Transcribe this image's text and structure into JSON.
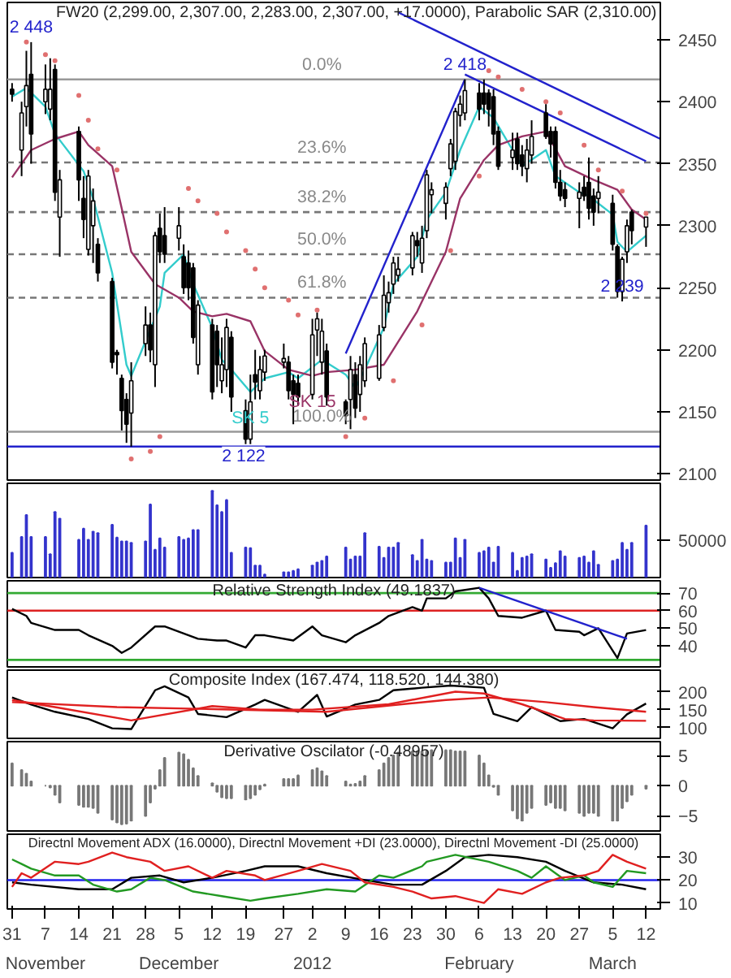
{
  "chart_data": [
    {
      "type": "candlestick",
      "title": "FW20 (2,299.00, 2,307.00, 2,283.00, 2,307.00, +17.0000), Parabolic SAR (2,310.00)",
      "tick_labels": "y",
      "xlim": [
        "2011-10-30",
        "2012-03-15"
      ],
      "ylim": [
        2095,
        2480
      ],
      "yticks": [
        2100,
        2150,
        2200,
        2250,
        2300,
        2350,
        2400,
        2450
      ],
      "x": [
        "2011-10-31",
        "2011-11-02",
        "2011-11-03",
        "2011-11-04",
        "2011-11-07",
        "2011-11-08",
        "2011-11-09",
        "2011-11-10",
        "2011-11-14",
        "2011-11-15",
        "2011-11-16",
        "2011-11-17",
        "2011-11-18",
        "2011-11-21",
        "2011-11-22",
        "2011-11-23",
        "2011-11-24",
        "2011-11-25",
        "2011-11-28",
        "2011-11-29",
        "2011-11-30",
        "2011-12-01",
        "2011-12-02",
        "2011-12-05",
        "2011-12-06",
        "2011-12-07",
        "2011-12-08",
        "2011-12-09",
        "2011-12-12",
        "2011-12-13",
        "2011-12-14",
        "2011-12-15",
        "2011-12-16",
        "2011-12-19",
        "2011-12-20",
        "2011-12-21",
        "2011-12-22",
        "2011-12-23",
        "2011-12-27",
        "2011-12-28",
        "2011-12-29",
        "2011-12-30",
        "2012-01-02",
        "2012-01-03",
        "2012-01-04",
        "2012-01-05",
        "2012-01-09",
        "2012-01-10",
        "2012-01-11",
        "2012-01-12",
        "2012-01-13",
        "2012-01-16",
        "2012-01-17",
        "2012-01-18",
        "2012-01-19",
        "2012-01-20",
        "2012-01-23",
        "2012-01-24",
        "2012-01-25",
        "2012-01-26",
        "2012-01-27",
        "2012-01-30",
        "2012-01-31",
        "2012-02-01",
        "2012-02-02",
        "2012-02-03",
        "2012-02-06",
        "2012-02-07",
        "2012-02-08",
        "2012-02-09",
        "2012-02-10",
        "2012-02-13",
        "2012-02-14",
        "2012-02-15",
        "2012-02-16",
        "2012-02-17",
        "2012-02-20",
        "2012-02-21",
        "2012-02-22",
        "2012-02-23",
        "2012-02-24",
        "2012-02-27",
        "2012-02-28",
        "2012-02-29",
        "2012-03-01",
        "2012-03-02",
        "2012-03-05",
        "2012-03-06",
        "2012-03-07",
        "2012-03-08",
        "2012-03-09",
        "2012-03-12"
      ],
      "ohlc": [
        [
          2410,
          2415,
          2400,
          2406
        ],
        [
          2361,
          2400,
          2340,
          2391
        ],
        [
          2396,
          2441,
          2380,
          2413
        ],
        [
          2422,
          2448,
          2350,
          2374
        ],
        [
          2400,
          2430,
          2390,
          2410
        ],
        [
          2394,
          2435,
          2385,
          2410
        ],
        [
          2426,
          2430,
          2320,
          2327
        ],
        [
          2307,
          2345,
          2275,
          2337
        ],
        [
          2376,
          2380,
          2320,
          2337
        ],
        [
          2322,
          2340,
          2290,
          2305
        ],
        [
          2281,
          2345,
          2276,
          2340
        ],
        [
          2300,
          2330,
          2270,
          2320
        ],
        [
          2285,
          2290,
          2255,
          2262
        ],
        [
          2255,
          2258,
          2185,
          2190
        ],
        [
          2198,
          2200,
          2180,
          2196
        ],
        [
          2177,
          2180,
          2135,
          2151
        ],
        [
          2160,
          2165,
          2125,
          2140
        ],
        [
          2149,
          2190,
          2122,
          2175
        ],
        [
          2205,
          2235,
          2195,
          2220
        ],
        [
          2220,
          2230,
          2190,
          2200
        ],
        [
          2188,
          2295,
          2170,
          2292
        ],
        [
          2298,
          2310,
          2270,
          2279
        ],
        [
          2292,
          2315,
          2270,
          2277
        ],
        [
          2290,
          2315,
          2280,
          2300
        ],
        [
          2275,
          2285,
          2245,
          2250
        ],
        [
          2270,
          2280,
          2240,
          2250
        ],
        [
          2266,
          2270,
          2205,
          2210
        ],
        [
          2188,
          2240,
          2180,
          2236
        ],
        [
          2220,
          2225,
          2160,
          2166
        ],
        [
          2215,
          2220,
          2170,
          2188
        ],
        [
          2175,
          2210,
          2165,
          2188
        ],
        [
          2184,
          2225,
          2170,
          2218
        ],
        [
          2210,
          2215,
          2150,
          2162
        ],
        [
          2151,
          2160,
          2124,
          2128
        ],
        [
          2128,
          2180,
          2124,
          2158
        ],
        [
          2180,
          2200,
          2160,
          2174
        ],
        [
          2167,
          2195,
          2160,
          2184
        ],
        [
          2182,
          2200,
          2175,
          2195
        ],
        [
          2190,
          2205,
          2185,
          2193
        ],
        [
          2190,
          2195,
          2160,
          2167
        ],
        [
          2175,
          2180,
          2140,
          2164
        ],
        [
          2173,
          2180,
          2155,
          2162
        ],
        [
          2164,
          2225,
          2160,
          2212
        ],
        [
          2216,
          2230,
          2195,
          2225
        ],
        [
          2190,
          2225,
          2180,
          2215
        ],
        [
          2199,
          2205,
          2155,
          2162
        ],
        [
          2158,
          2160,
          2140,
          2147
        ],
        [
          2160,
          2195,
          2136,
          2184
        ],
        [
          2180,
          2190,
          2145,
          2153
        ],
        [
          2164,
          2195,
          2150,
          2188
        ],
        [
          2175,
          2210,
          2170,
          2205
        ],
        [
          2177,
          2220,
          2175,
          2212
        ],
        [
          2218,
          2260,
          2215,
          2244
        ],
        [
          2238,
          2255,
          2230,
          2246
        ],
        [
          2253,
          2275,
          2245,
          2270
        ],
        [
          2260,
          2275,
          2255,
          2265
        ],
        [
          2266,
          2295,
          2260,
          2292
        ],
        [
          2288,
          2295,
          2275,
          2284
        ],
        [
          2270,
          2300,
          2262,
          2290
        ],
        [
          2296,
          2345,
          2290,
          2341
        ],
        [
          2325,
          2335,
          2310,
          2329
        ],
        [
          2318,
          2335,
          2305,
          2331
        ],
        [
          2346,
          2370,
          2340,
          2366
        ],
        [
          2352,
          2395,
          2345,
          2392
        ],
        [
          2389,
          2405,
          2380,
          2398
        ],
        [
          2391,
          2418,
          2385,
          2409
        ],
        [
          2407,
          2415,
          2385,
          2394
        ],
        [
          2407,
          2418,
          2390,
          2398
        ],
        [
          2407,
          2410,
          2380,
          2394
        ],
        [
          2404,
          2410,
          2365,
          2374
        ],
        [
          2376,
          2380,
          2345,
          2348
        ],
        [
          2355,
          2375,
          2345,
          2361
        ],
        [
          2370,
          2375,
          2345,
          2350
        ],
        [
          2357,
          2365,
          2340,
          2348
        ],
        [
          2346,
          2370,
          2335,
          2361
        ],
        [
          2357,
          2385,
          2350,
          2372
        ],
        [
          2391,
          2398,
          2370,
          2372
        ],
        [
          2376,
          2380,
          2355,
          2366
        ],
        [
          2376,
          2380,
          2330,
          2335
        ],
        [
          2335,
          2345,
          2320,
          2324
        ],
        [
          2329,
          2335,
          2315,
          2322
        ],
        [
          2322,
          2335,
          2298,
          2327
        ],
        [
          2331,
          2340,
          2320,
          2324
        ],
        [
          2335,
          2355,
          2305,
          2314
        ],
        [
          2324,
          2330,
          2300,
          2311
        ],
        [
          2322,
          2340,
          2310,
          2327
        ],
        [
          2318,
          2325,
          2280,
          2285
        ],
        [
          2283,
          2285,
          2242,
          2247
        ],
        [
          2247,
          2275,
          2239,
          2273
        ],
        [
          2279,
          2305,
          2270,
          2300
        ],
        [
          2311,
          2313,
          2285,
          2296
        ],
        [
          2299,
          2307,
          2283,
          2307
        ]
      ],
      "series": [
        {
          "name": "SK 5",
          "type": "line",
          "color": "#33cccc",
          "x": [
            "2011-10-31",
            "2011-11-03",
            "2011-11-07",
            "2011-11-09",
            "2011-11-15",
            "2011-11-17",
            "2011-11-21",
            "2011-11-24",
            "2011-11-25",
            "2011-12-01",
            "2011-12-02",
            "2011-12-06",
            "2011-12-08",
            "2011-12-12",
            "2011-12-14",
            "2011-12-16",
            "2011-12-20",
            "2011-12-23",
            "2011-12-28",
            "2011-12-30",
            "2012-01-04",
            "2012-01-09",
            "2012-01-11",
            "2012-01-13",
            "2012-01-17",
            "2012-01-19",
            "2012-01-24",
            "2012-01-26",
            "2012-01-30",
            "2012-02-02",
            "2012-02-06",
            "2012-02-09",
            "2012-02-13",
            "2012-02-15",
            "2012-02-20",
            "2012-02-22",
            "2012-02-27",
            "2012-02-29",
            "2012-03-05",
            "2012-03-06",
            "2012-03-08",
            "2012-03-12"
          ],
          "values": [
            2404,
            2411,
            2396,
            2374,
            2344,
            2322,
            2262,
            2188,
            2179,
            2235,
            2262,
            2277,
            2253,
            2218,
            2192,
            2184,
            2166,
            2177,
            2182,
            2177,
            2192,
            2180,
            2169,
            2184,
            2218,
            2253,
            2275,
            2305,
            2327,
            2361,
            2396,
            2387,
            2361,
            2348,
            2361,
            2340,
            2327,
            2324,
            2309,
            2287,
            2279,
            2292
          ]
        },
        {
          "name": "SK 15",
          "type": "line",
          "color": "#993366",
          "x": [
            "2011-10-31",
            "2011-11-04",
            "2011-11-09",
            "2011-11-14",
            "2011-11-16",
            "2011-11-21",
            "2011-11-23",
            "2011-11-25",
            "2011-11-30",
            "2011-12-05",
            "2011-12-08",
            "2011-12-12",
            "2011-12-15",
            "2011-12-20",
            "2011-12-23",
            "2011-12-28",
            "2012-01-02",
            "2012-01-05",
            "2012-01-11",
            "2012-01-17",
            "2012-01-24",
            "2012-01-30",
            "2012-02-02",
            "2012-02-07",
            "2012-02-10",
            "2012-02-15",
            "2012-02-20",
            "2012-02-24",
            "2012-03-01",
            "2012-03-06",
            "2012-03-09",
            "2012-03-12"
          ],
          "values": [
            2339,
            2361,
            2370,
            2376,
            2365,
            2348,
            2314,
            2279,
            2253,
            2242,
            2231,
            2227,
            2229,
            2223,
            2199,
            2184,
            2179,
            2182,
            2184,
            2188,
            2231,
            2279,
            2322,
            2353,
            2365,
            2372,
            2376,
            2348,
            2337,
            2329,
            2313,
            2305
          ]
        },
        {
          "type": "scatter",
          "marker": "circle",
          "color": "#e07070",
          "x": [
            "2011-11-03",
            "2011-11-07",
            "2011-11-09",
            "2011-11-14",
            "2011-11-16",
            "2011-11-18",
            "2011-11-22",
            "2011-11-25",
            "2011-11-29",
            "2011-12-01",
            "2011-12-07",
            "2011-12-09",
            "2011-12-13",
            "2011-12-15",
            "2011-12-19",
            "2011-12-21",
            "2011-12-23",
            "2011-12-28",
            "2011-12-30",
            "2012-01-03",
            "2012-01-09",
            "2012-01-13",
            "2012-01-19",
            "2012-01-25",
            "2012-01-31",
            "2012-02-06",
            "2012-02-08",
            "2012-02-10",
            "2012-02-15",
            "2012-02-20",
            "2012-02-23",
            "2012-02-28",
            "2012-03-02",
            "2012-03-07",
            "2012-03-12"
          ],
          "values": [
            2448,
            2438,
            2433,
            2405,
            2385,
            2362,
            2345,
            2112,
            2118,
            2130,
            2330,
            2320,
            2310,
            2295,
            2280,
            2265,
            2250,
            2240,
            2228,
            2232,
            2130,
            2145,
            2175,
            2220,
            2280,
            2340,
            2425,
            2420,
            2410,
            2400,
            2391,
            2365,
            2345,
            2328,
            2310
          ]
        },
        {
          "type": "line",
          "color": "#2222cc",
          "x": [
            "2012-01-09",
            "2012-02-03"
          ],
          "values": [
            2197,
            2418
          ]
        },
        {
          "type": "line",
          "color": "#2222cc",
          "x": [
            "2012-01-20",
            "2012-03-15"
          ],
          "values": [
            2472,
            2370
          ]
        },
        {
          "type": "line",
          "color": "#2222cc",
          "x": [
            "2012-02-03",
            "2012-03-12"
          ],
          "values": [
            2422,
            2352
          ]
        }
      ],
      "ref_lines": [
        {
          "axis": "y",
          "value": 2418,
          "color": "#999999",
          "line_style": "solid"
        },
        {
          "axis": "y",
          "value": 2351,
          "color": "#777777",
          "line_style": "dashed"
        },
        {
          "axis": "y",
          "value": 2311,
          "color": "#777777",
          "line_style": "dashed"
        },
        {
          "axis": "y",
          "value": 2277,
          "color": "#777777",
          "line_style": "dashed"
        },
        {
          "axis": "y",
          "value": 2242,
          "color": "#777777",
          "line_style": "dashed"
        },
        {
          "axis": "y",
          "value": 2134,
          "color": "#999999",
          "line_style": "solid"
        },
        {
          "axis": "y",
          "value": 2122,
          "label": "2 122",
          "color": "#2222cc",
          "line_style": "solid"
        }
      ],
      "annotations": [
        {
          "text": "2 448",
          "x": "2011-11-04",
          "y": 2448
        },
        {
          "text": "2 418",
          "x": "2012-02-03",
          "y": 2418
        },
        {
          "text": "2 239",
          "x": "2012-03-07",
          "y": 2239
        },
        {
          "text": "0.0%",
          "x": "2012-01-04",
          "y": 2418
        },
        {
          "text": "23.6%",
          "x": "2012-01-04",
          "y": 2351
        },
        {
          "text": "38.2%",
          "x": "2012-01-04",
          "y": 2311
        },
        {
          "text": "50.0%",
          "x": "2012-01-04",
          "y": 2277
        },
        {
          "text": "61.8%",
          "x": "2012-01-04",
          "y": 2242
        },
        {
          "text": "100.0%",
          "x": "2012-01-04",
          "y": 2134
        }
      ]
    },
    {
      "type": "bar",
      "tick_labels": "y",
      "color": "#3333cc",
      "xlim": [
        "2011-10-30",
        "2012-03-15"
      ],
      "ylim": [
        0,
        125000
      ],
      "yticks": [
        50000
      ],
      "x": [
        "2011-10-31",
        "2011-11-02",
        "2011-11-03",
        "2011-11-04",
        "2011-11-07",
        "2011-11-08",
        "2011-11-09",
        "2011-11-10",
        "2011-11-14",
        "2011-11-15",
        "2011-11-16",
        "2011-11-17",
        "2011-11-18",
        "2011-11-21",
        "2011-11-22",
        "2011-11-23",
        "2011-11-24",
        "2011-11-25",
        "2011-11-28",
        "2011-11-29",
        "2011-11-30",
        "2011-12-01",
        "2011-12-02",
        "2011-12-05",
        "2011-12-06",
        "2011-12-07",
        "2011-12-08",
        "2011-12-09",
        "2011-12-12",
        "2011-12-13",
        "2011-12-14",
        "2011-12-15",
        "2011-12-16",
        "2011-12-19",
        "2011-12-20",
        "2011-12-21",
        "2011-12-22",
        "2011-12-23",
        "2011-12-27",
        "2011-12-28",
        "2011-12-29",
        "2011-12-30",
        "2012-01-02",
        "2012-01-03",
        "2012-01-04",
        "2012-01-05",
        "2012-01-09",
        "2012-01-10",
        "2012-01-11",
        "2012-01-12",
        "2012-01-13",
        "2012-01-16",
        "2012-01-17",
        "2012-01-18",
        "2012-01-19",
        "2012-01-20",
        "2012-01-23",
        "2012-01-24",
        "2012-01-25",
        "2012-01-26",
        "2012-01-27",
        "2012-01-30",
        "2012-01-31",
        "2012-02-01",
        "2012-02-02",
        "2012-02-03",
        "2012-02-06",
        "2012-02-07",
        "2012-02-08",
        "2012-02-09",
        "2012-02-10",
        "2012-02-13",
        "2012-02-14",
        "2012-02-15",
        "2012-02-16",
        "2012-02-17",
        "2012-02-20",
        "2012-02-21",
        "2012-02-22",
        "2012-02-23",
        "2012-02-24",
        "2012-02-27",
        "2012-02-28",
        "2012-02-29",
        "2012-03-01",
        "2012-03-02",
        "2012-03-05",
        "2012-03-06",
        "2012-03-07",
        "2012-03-08",
        "2012-03-09",
        "2012-03-12"
      ],
      "values": [
        33000,
        54000,
        83000,
        54000,
        54000,
        31000,
        87000,
        78000,
        50000,
        65000,
        50000,
        61000,
        59000,
        70000,
        53000,
        48000,
        48000,
        46000,
        48000,
        97000,
        37000,
        52000,
        40000,
        54000,
        50000,
        52000,
        63000,
        63000,
        115000,
        96000,
        87000,
        103000,
        33000,
        40000,
        39000,
        16000,
        16000,
        4000,
        7000,
        7000,
        9000,
        11000,
        16000,
        20000,
        22000,
        28000,
        40000,
        24000,
        28000,
        28000,
        59000,
        41000,
        26000,
        40000,
        40000,
        46000,
        30000,
        22000,
        50000,
        24000,
        22000,
        20000,
        20000,
        52000,
        26000,
        50000,
        33000,
        35000,
        40000,
        20000,
        41000,
        33000,
        9000,
        26000,
        28000,
        31000,
        24000,
        13000,
        19000,
        35000,
        28000,
        26000,
        28000,
        20000,
        35000,
        17000,
        22000,
        24000,
        46000,
        37000,
        46000,
        69000
      ]
    },
    {
      "type": "line",
      "title": "Relative Strength Index (49.1837)",
      "tick_labels": "y",
      "xlim": [
        "2011-10-30",
        "2012-03-15"
      ],
      "ylim": [
        28,
        77
      ],
      "yticks": [
        40,
        50,
        60,
        70
      ],
      "series": [
        {
          "type": "line",
          "color": "#000000",
          "x": [
            "2011-10-31",
            "2011-11-03",
            "2011-11-04",
            "2011-11-09",
            "2011-11-14",
            "2011-11-16",
            "2011-11-21",
            "2011-11-23",
            "2011-11-25",
            "2011-11-30",
            "2011-12-02",
            "2011-12-06",
            "2011-12-09",
            "2011-12-13",
            "2011-12-15",
            "2011-12-19",
            "2011-12-21",
            "2011-12-23",
            "2011-12-29",
            "2012-01-02",
            "2012-01-04",
            "2012-01-09",
            "2012-01-11",
            "2012-01-16",
            "2012-01-18",
            "2012-01-23",
            "2012-01-25",
            "2012-01-26",
            "2012-01-30",
            "2012-02-01",
            "2012-02-06",
            "2012-02-08",
            "2012-02-10",
            "2012-02-15",
            "2012-02-20",
            "2012-02-22",
            "2012-02-27",
            "2012-02-28",
            "2012-03-02",
            "2012-03-06",
            "2012-03-08",
            "2012-03-12"
          ],
          "values": [
            61,
            57,
            53,
            49,
            49,
            46,
            40,
            36,
            39,
            51,
            51,
            47,
            44,
            43,
            43,
            39,
            46,
            46,
            43,
            51,
            46,
            42,
            46,
            53,
            57,
            62,
            60,
            67,
            67,
            71,
            73,
            67,
            57,
            56,
            60,
            49,
            48,
            46,
            50,
            33,
            47,
            49
          ]
        },
        {
          "type": "line",
          "color": "#2222cc",
          "x": [
            "2012-02-06",
            "2012-03-08"
          ],
          "values": [
            73,
            44
          ]
        }
      ],
      "ref_lines": [
        {
          "axis": "y",
          "value": 70,
          "color": "#33aa33"
        },
        {
          "axis": "y",
          "value": 60,
          "color": "#dd2222"
        },
        {
          "axis": "y",
          "value": 32,
          "color": "#33aa33"
        }
      ]
    },
    {
      "type": "line",
      "title": "Composite Index (167.474, 118.520, 144.380)",
      "tick_labels": "y",
      "xlim": [
        "2011-10-30",
        "2012-03-15"
      ],
      "ylim": [
        70,
        260
      ],
      "yticks": [
        100,
        150,
        200
      ],
      "series": [
        {
          "type": "line",
          "color": "#000000",
          "x": [
            "2011-10-31",
            "2011-11-04",
            "2011-11-09",
            "2011-11-16",
            "2011-11-21",
            "2011-11-25",
            "2011-11-30",
            "2011-12-02",
            "2011-12-07",
            "2011-12-09",
            "2011-12-15",
            "2011-12-21",
            "2011-12-23",
            "2011-12-30",
            "2012-01-03",
            "2012-01-05",
            "2012-01-11",
            "2012-01-16",
            "2012-01-19",
            "2012-01-25",
            "2012-01-31",
            "2012-02-07",
            "2012-02-09",
            "2012-02-14",
            "2012-02-17",
            "2012-02-23",
            "2012-02-28",
            "2012-03-05",
            "2012-03-08",
            "2012-03-12"
          ],
          "values": [
            184,
            164,
            144,
            124,
            98,
            96,
            204,
            215,
            184,
            138,
            129,
            164,
            177,
            144,
            191,
            131,
            164,
            177,
            204,
            211,
            217,
            211,
            138,
            118,
            157,
            118,
            124,
            98,
            137,
            167
          ]
        },
        {
          "type": "line",
          "color": "#e02020",
          "x": [
            "2011-10-31",
            "2011-11-09",
            "2011-11-25",
            "2011-12-12",
            "2011-12-22",
            "2012-01-02",
            "2012-01-18",
            "2012-02-01",
            "2012-02-07",
            "2012-02-15",
            "2012-02-24",
            "2012-03-01",
            "2012-03-12"
          ],
          "values": [
            177,
            157,
            120,
            160,
            150,
            150,
            165,
            200,
            195,
            165,
            124,
            120,
            119
          ]
        },
        {
          "type": "line",
          "color": "#e02020",
          "x": [
            "2011-10-31",
            "2011-11-22",
            "2011-12-14",
            "2012-01-05",
            "2012-01-30",
            "2012-02-08",
            "2012-02-20",
            "2012-03-01",
            "2012-03-12"
          ],
          "values": [
            171,
            157,
            151,
            144,
            177,
            184,
            171,
            157,
            144
          ]
        }
      ]
    },
    {
      "type": "bar",
      "title": "Derivative Oscilator (-0.48957)",
      "tick_labels": "y",
      "color": "#777777",
      "xlim": [
        "2011-10-30",
        "2012-03-15"
      ],
      "ylim": [
        -7.5,
        7.3
      ],
      "yticks": [
        -5,
        0,
        5
      ],
      "x": [
        "2011-10-31",
        "2011-11-02",
        "2011-11-03",
        "2011-11-04",
        "2011-11-07",
        "2011-11-08",
        "2011-11-09",
        "2011-11-10",
        "2011-11-14",
        "2011-11-15",
        "2011-11-16",
        "2011-11-17",
        "2011-11-18",
        "2011-11-21",
        "2011-11-22",
        "2011-11-23",
        "2011-11-24",
        "2011-11-25",
        "2011-11-28",
        "2011-11-29",
        "2011-11-30",
        "2011-12-01",
        "2011-12-02",
        "2011-12-05",
        "2011-12-06",
        "2011-12-07",
        "2011-12-08",
        "2011-12-09",
        "2011-12-12",
        "2011-12-13",
        "2011-12-14",
        "2011-12-15",
        "2011-12-16",
        "2011-12-19",
        "2011-12-20",
        "2011-12-21",
        "2011-12-22",
        "2011-12-23",
        "2011-12-27",
        "2011-12-28",
        "2011-12-29",
        "2011-12-30",
        "2012-01-02",
        "2012-01-03",
        "2012-01-04",
        "2012-01-05",
        "2012-01-09",
        "2012-01-10",
        "2012-01-11",
        "2012-01-12",
        "2012-01-13",
        "2012-01-16",
        "2012-01-17",
        "2012-01-18",
        "2012-01-19",
        "2012-01-20",
        "2012-01-23",
        "2012-01-24",
        "2012-01-25",
        "2012-01-26",
        "2012-01-27",
        "2012-01-30",
        "2012-01-31",
        "2012-02-01",
        "2012-02-02",
        "2012-02-03",
        "2012-02-06",
        "2012-02-07",
        "2012-02-08",
        "2012-02-09",
        "2012-02-10",
        "2012-02-13",
        "2012-02-14",
        "2012-02-15",
        "2012-02-16",
        "2012-02-17",
        "2012-02-20",
        "2012-02-21",
        "2012-02-22",
        "2012-02-23",
        "2012-02-24",
        "2012-02-27",
        "2012-02-28",
        "2012-02-29",
        "2012-03-01",
        "2012-03-02",
        "2012-03-05",
        "2012-03-06",
        "2012-03-07",
        "2012-03-08",
        "2012-03-09",
        "2012-03-12"
      ],
      "values": [
        3.7,
        2.6,
        2.0,
        0.7,
        0.0,
        -0.3,
        -1.5,
        -2.8,
        -3.2,
        -3.5,
        -3.5,
        -3.7,
        -4.5,
        -5.6,
        -6.1,
        -6.4,
        -6.3,
        -5.8,
        -5.0,
        -2.8,
        -0.5,
        2.6,
        4.6,
        5.5,
        5.2,
        4.3,
        2.9,
        1.6,
        0.4,
        -1.0,
        -1.9,
        -2.1,
        -2.1,
        -2.3,
        -2.1,
        -1.5,
        -0.6,
        0.2,
        1.1,
        1.1,
        1.1,
        1.7,
        2.6,
        2.9,
        2.4,
        1.6,
        0.7,
        0.2,
        0.3,
        0.7,
        1.6,
        2.6,
        3.7,
        4.6,
        5.0,
        5.5,
        5.7,
        5.7,
        5.7,
        5.7,
        5.9,
        5.9,
        5.9,
        5.7,
        5.7,
        5.7,
        5.0,
        3.7,
        1.7,
        -0.2,
        -1.5,
        -4.1,
        -5.4,
        -5.8,
        -4.5,
        -3.7,
        -3.2,
        -2.8,
        -3.7,
        -3.7,
        -4.1,
        -4.5,
        -5.0,
        -4.5,
        -4.5,
        -5.0,
        -5.8,
        -5.8,
        -3.7,
        -2.6,
        -1.5,
        -0.5
      ]
    },
    {
      "type": "line",
      "title": "Directnl Movement ADX (16.0000), Directnl Movement +DI (23.0000), Directnl Movement -DI (25.0000)",
      "xlim": [
        "2011-10-30",
        "2012-03-15"
      ],
      "ylim": [
        7.4,
        40
      ],
      "yticks": [
        10,
        20,
        30
      ],
      "xticks": [
        {
          "value": "2011-10-31",
          "label": "31"
        },
        {
          "value": "2011-11-07",
          "label": "7"
        },
        {
          "value": "2011-11-14",
          "label": "14"
        },
        {
          "value": "2011-11-21",
          "label": "21"
        },
        {
          "value": "2011-11-28",
          "label": "28"
        },
        {
          "value": "2011-12-05",
          "label": "5"
        },
        {
          "value": "2011-12-12",
          "label": "12"
        },
        {
          "value": "2011-12-19",
          "label": "19"
        },
        {
          "value": "2011-12-27",
          "label": "27"
        },
        {
          "value": "2012-01-02",
          "label": "2"
        },
        {
          "value": "2012-01-09",
          "label": "9"
        },
        {
          "value": "2012-01-16",
          "label": "16"
        },
        {
          "value": "2012-01-23",
          "label": "23"
        },
        {
          "value": "2012-01-30",
          "label": "30"
        },
        {
          "value": "2012-02-06",
          "label": "6"
        },
        {
          "value": "2012-02-13",
          "label": "13"
        },
        {
          "value": "2012-02-20",
          "label": "20"
        },
        {
          "value": "2012-02-27",
          "label": "27"
        },
        {
          "value": "2012-03-05",
          "label": "5"
        },
        {
          "value": "2012-03-12",
          "label": "12"
        }
      ],
      "series": [
        {
          "type": "line",
          "color": "#000000",
          "x": [
            "2011-10-31",
            "2011-11-04",
            "2011-11-14",
            "2011-11-21",
            "2011-11-25",
            "2011-12-01",
            "2011-12-06",
            "2011-12-12",
            "2011-12-19",
            "2011-12-23",
            "2011-12-30",
            "2012-01-05",
            "2012-01-13",
            "2012-01-19",
            "2012-01-25",
            "2012-01-30",
            "2012-02-03",
            "2012-02-08",
            "2012-02-14",
            "2012-02-20",
            "2012-02-24",
            "2012-03-01",
            "2012-03-07",
            "2012-03-12"
          ],
          "values": [
            19,
            18,
            16,
            16,
            21,
            22,
            19,
            21,
            24,
            26,
            26,
            23,
            20,
            18,
            18,
            24,
            30,
            31,
            30,
            28,
            24,
            19,
            18,
            16
          ]
        },
        {
          "type": "line",
          "color": "#229922",
          "x": [
            "2011-10-31",
            "2011-11-02",
            "2011-11-04",
            "2011-11-09",
            "2011-11-14",
            "2011-11-17",
            "2011-11-22",
            "2011-11-25",
            "2011-11-29",
            "2011-12-02",
            "2011-12-08",
            "2011-12-14",
            "2011-12-20",
            "2011-12-23",
            "2011-12-30",
            "2012-01-05",
            "2012-01-11",
            "2012-01-16",
            "2012-01-19",
            "2012-01-25",
            "2012-01-26",
            "2012-02-01",
            "2012-02-08",
            "2012-02-14",
            "2012-02-17",
            "2012-02-20",
            "2012-02-24",
            "2012-02-28",
            "2012-03-01",
            "2012-03-05",
            "2012-03-08",
            "2012-03-12"
          ],
          "values": [
            29,
            27,
            25,
            22,
            22,
            18,
            15,
            16,
            21,
            20,
            15,
            13,
            11,
            12,
            14,
            16,
            15,
            22,
            21,
            26,
            28,
            31,
            28,
            24,
            21,
            26,
            20,
            22,
            19,
            17,
            24,
            23
          ]
        },
        {
          "type": "line",
          "color": "#e02020",
          "x": [
            "2011-10-31",
            "2011-11-02",
            "2011-11-04",
            "2011-11-09",
            "2011-11-14",
            "2011-11-16",
            "2011-11-21",
            "2011-11-24",
            "2011-11-29",
            "2011-12-02",
            "2011-12-07",
            "2011-12-12",
            "2011-12-15",
            "2011-12-21",
            "2011-12-23",
            "2011-12-30",
            "2012-01-04",
            "2012-01-10",
            "2012-01-13",
            "2012-01-19",
            "2012-01-23",
            "2012-01-27",
            "2012-02-01",
            "2012-02-07",
            "2012-02-10",
            "2012-02-15",
            "2012-02-20",
            "2012-02-23",
            "2012-02-28",
            "2012-03-02",
            "2012-03-05",
            "2012-03-08",
            "2012-03-12"
          ],
          "values": [
            17,
            23,
            21,
            28,
            27,
            28,
            32,
            30,
            28,
            24,
            26,
            21,
            24,
            22,
            20,
            24,
            27,
            24,
            19,
            17,
            15,
            12,
            13,
            10,
            16,
            14,
            19,
            21,
            22,
            24,
            31,
            28,
            25
          ]
        }
      ],
      "ref_lines": [
        {
          "axis": "y",
          "value": 20,
          "color": "#2222ee"
        }
      ],
      "annotations": [
        "November",
        "December",
        "2012",
        "February",
        "March"
      ]
    }
  ]
}
